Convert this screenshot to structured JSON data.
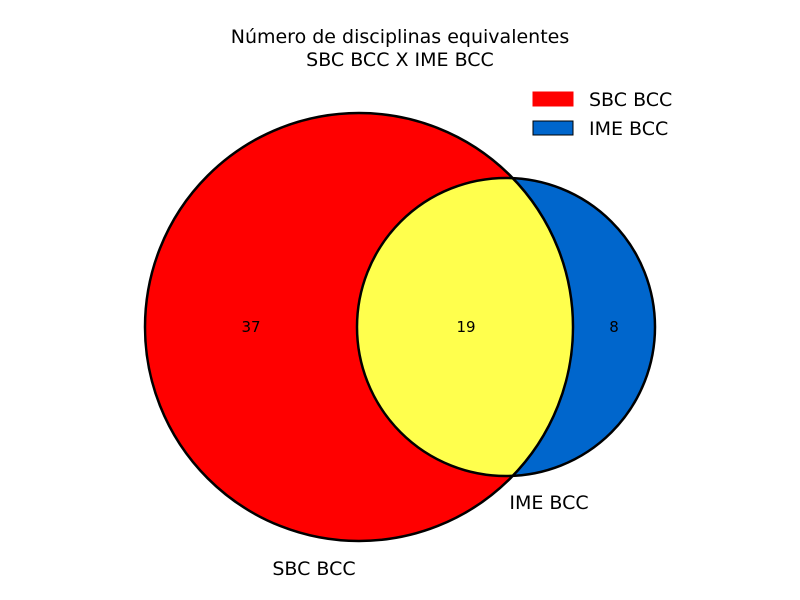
{
  "title": {
    "line1": "Número de disciplinas equivalentes",
    "line2": "SBC BCC X IME BCC"
  },
  "sets": [
    {
      "name": "SBC BCC",
      "color": "#ff0000"
    },
    {
      "name": "IME BCC",
      "color": "#0066cc"
    }
  ],
  "intersection_color": "#ffff4d",
  "counts": {
    "only_sbc": "37",
    "both": "19",
    "only_ime": "8"
  },
  "legend": [
    {
      "label": "SBC BCC",
      "color": "#ff0000"
    },
    {
      "label": "IME BCC",
      "color": "#0066cc"
    }
  ]
}
